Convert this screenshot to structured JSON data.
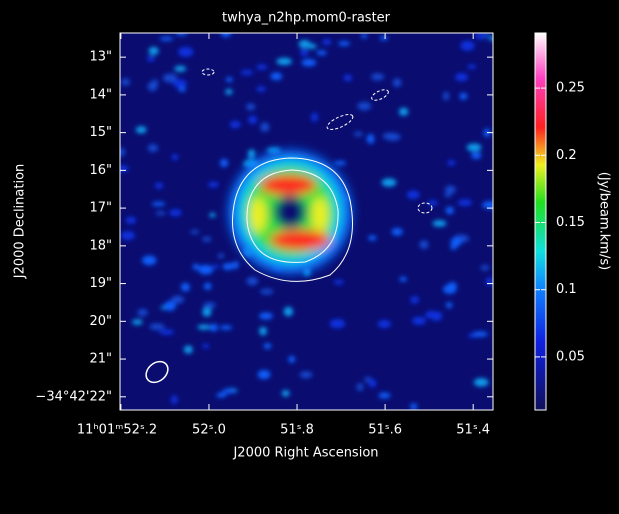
{
  "chart_data": {
    "type": "raster",
    "title": "twhya_n2hp.mom0-raster",
    "x_label": "J2000 Right Ascension",
    "y_label": "J2000 Declination",
    "colorbar_label": "(Jy/beam.km/s)",
    "xlim": [
      52.202,
      51.355
    ],
    "xticks": [
      {
        "value": 52.2,
        "label": "11ʰ01ᵐ52ˢ.2"
      },
      {
        "value": 52.0,
        "label": "52ˢ.0"
      },
      {
        "value": 51.8,
        "label": "51ˢ.8"
      },
      {
        "value": 51.6,
        "label": "51ˢ.6"
      },
      {
        "value": 51.4,
        "label": "51ˢ.4"
      }
    ],
    "ylim": [
      12.36,
      22.35
    ],
    "yticks": [
      {
        "value": 13,
        "label": "13\""
      },
      {
        "value": 14,
        "label": "14\""
      },
      {
        "value": 15,
        "label": "15\""
      },
      {
        "value": 16,
        "label": "16\""
      },
      {
        "value": 17,
        "label": "17\""
      },
      {
        "value": 18,
        "label": "18\""
      },
      {
        "value": 19,
        "label": "19\""
      },
      {
        "value": 20,
        "label": "20\""
      },
      {
        "value": 21,
        "label": "21\""
      },
      {
        "value": 22,
        "label": "−34°42'22\""
      }
    ],
    "clim": [
      0.0105,
      0.291
    ],
    "cticks": [
      0.05,
      0.1,
      0.15,
      0.2,
      0.25
    ]
  }
}
